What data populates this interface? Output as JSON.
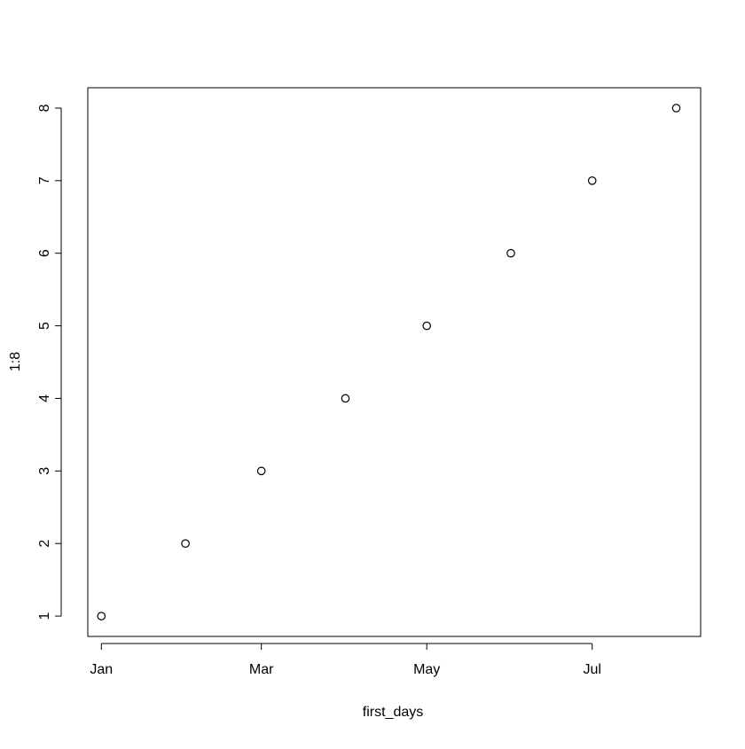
{
  "chart_data": {
    "type": "scatter",
    "xlabel": "first_days",
    "ylabel": "1:8",
    "x_type": "date",
    "x": [
      "Jan 1",
      "Feb 1",
      "Mar 1",
      "Apr 1",
      "May 1",
      "Jun 1",
      "Jul 1",
      "Aug 1"
    ],
    "y": [
      1,
      2,
      3,
      4,
      5,
      6,
      7,
      8
    ],
    "xlim": [
      "Dec 27",
      "Aug 10"
    ],
    "ylim": [
      0.72,
      8.28
    ],
    "x_ticks": [
      {
        "value": "Jan 1",
        "label": "Jan"
      },
      {
        "value": "Mar 1",
        "label": "Mar"
      },
      {
        "value": "May 1",
        "label": "May"
      },
      {
        "value": "Jul 1",
        "label": "Jul"
      }
    ],
    "y_ticks": [
      1,
      2,
      3,
      4,
      5,
      6,
      7,
      8
    ],
    "marker": "open-circle",
    "grid": false,
    "legend": "none",
    "colors": {
      "point_stroke": "#000000",
      "axis": "#000000",
      "background": "#ffffff"
    }
  }
}
